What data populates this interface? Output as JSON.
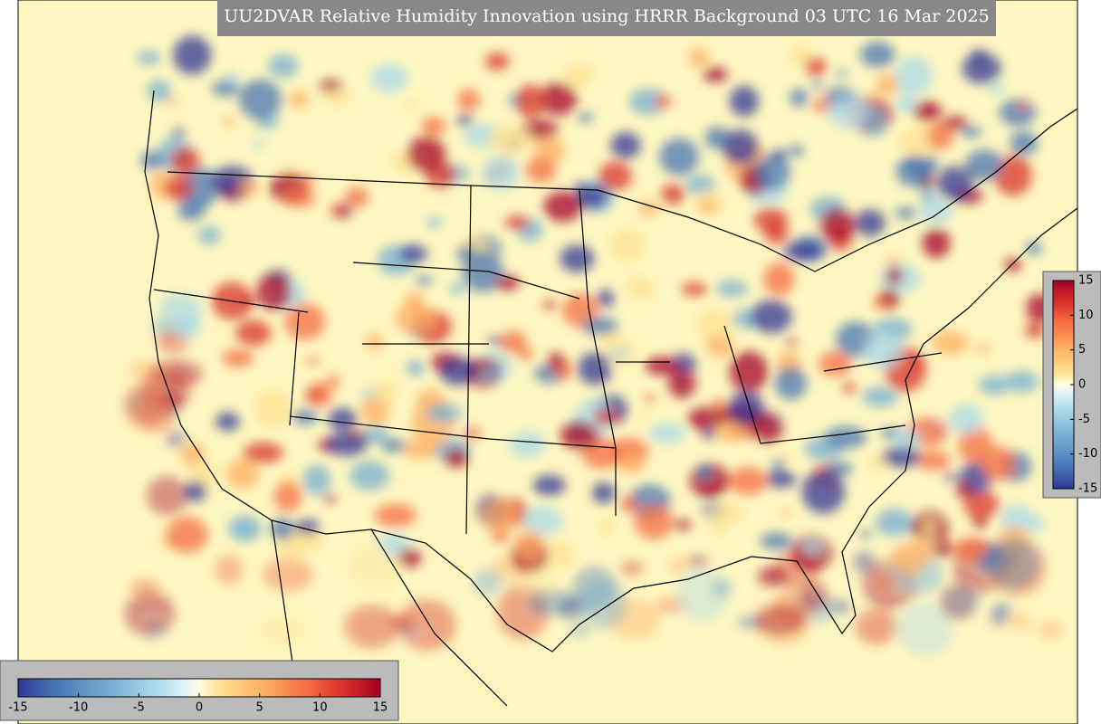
{
  "title": "UU2DVAR Relative Humidity Innovation using HRRR Background 03 UTC 16 Mar 2025",
  "colorbar_right": {
    "clim": [
      -15,
      15
    ],
    "ticks": [
      15,
      10,
      5,
      0,
      -5,
      -10,
      -15
    ]
  },
  "colorbar_bottom": {
    "clim": [
      -15,
      15
    ],
    "ticks": [
      -15,
      -10,
      -5,
      0,
      5,
      10,
      15
    ]
  }
}
